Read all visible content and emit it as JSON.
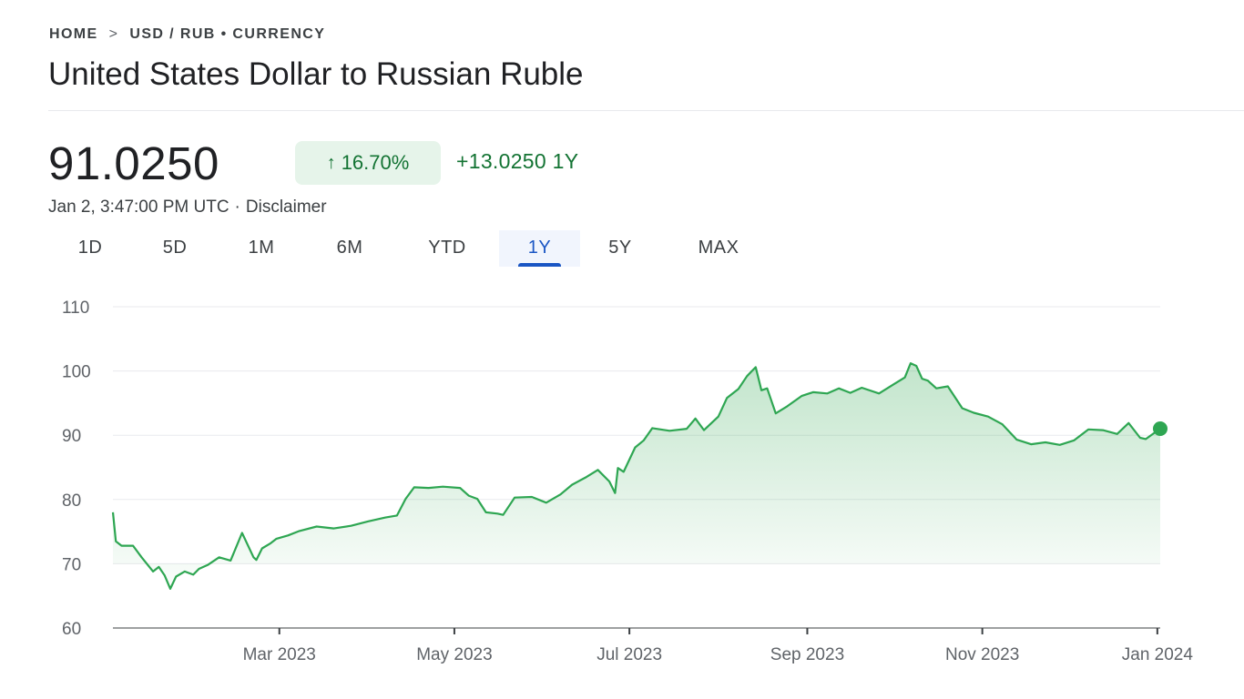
{
  "breadcrumb": {
    "home": "HOME",
    "separator": ">",
    "current": "USD / RUB • CURRENCY"
  },
  "title": "United States Dollar to Russian Ruble",
  "quote": {
    "price": "91.0250",
    "change_arrow": "↑",
    "change_percent": "16.70%",
    "change_abs": "+13.0250 1Y",
    "timestamp": "Jan 2, 3:47:00 PM UTC",
    "dot": "·",
    "disclaimer": "Disclaimer"
  },
  "tabs": [
    {
      "label": "1D"
    },
    {
      "label": "5D"
    },
    {
      "label": "1M"
    },
    {
      "label": "6M"
    },
    {
      "label": "YTD"
    },
    {
      "label": "1Y",
      "active": true
    },
    {
      "label": "5Y"
    },
    {
      "label": "MAX"
    }
  ],
  "colors": {
    "line": "#2ea652",
    "positive_text": "#137333",
    "chip_bg": "#e6f4ea",
    "active_tab": "#1a56c4"
  },
  "chart_data": {
    "type": "area",
    "y_ticks": [
      60,
      70,
      80,
      90,
      100,
      110
    ],
    "ylim": [
      60,
      110
    ],
    "x_ticks": [
      "Mar 2023",
      "May 2023",
      "Jul 2023",
      "Sep 2023",
      "Nov 2023",
      "Jan 2024"
    ],
    "x_tick_dates": [
      "2023-03-01",
      "2023-05-01",
      "2023-07-01",
      "2023-09-01",
      "2023-11-01",
      "2024-01-01"
    ],
    "xlim": [
      "2023-01-02",
      "2024-01-02"
    ],
    "grid": true,
    "series": [
      {
        "x": [
          "2023-01-02",
          "2023-01-03",
          "2023-01-05",
          "2023-01-09",
          "2023-01-12",
          "2023-01-16",
          "2023-01-18",
          "2023-01-20",
          "2023-01-22",
          "2023-01-24",
          "2023-01-27",
          "2023-01-30",
          "2023-02-01",
          "2023-02-04",
          "2023-02-08",
          "2023-02-12",
          "2023-02-16",
          "2023-02-20",
          "2023-02-21",
          "2023-02-23",
          "2023-02-26",
          "2023-02-28",
          "2023-03-04",
          "2023-03-08",
          "2023-03-14",
          "2023-03-20",
          "2023-03-26",
          "2023-04-01",
          "2023-04-07",
          "2023-04-11",
          "2023-04-14",
          "2023-04-17",
          "2023-04-22",
          "2023-04-27",
          "2023-05-03",
          "2023-05-06",
          "2023-05-09",
          "2023-05-12",
          "2023-05-16",
          "2023-05-18",
          "2023-05-22",
          "2023-05-28",
          "2023-06-02",
          "2023-06-07",
          "2023-06-11",
          "2023-06-16",
          "2023-06-20",
          "2023-06-24",
          "2023-06-26",
          "2023-06-27",
          "2023-06-29",
          "2023-07-03",
          "2023-07-06",
          "2023-07-09",
          "2023-07-15",
          "2023-07-21",
          "2023-07-24",
          "2023-07-27",
          "2023-08-01",
          "2023-08-04",
          "2023-08-08",
          "2023-08-11",
          "2023-08-14",
          "2023-08-16",
          "2023-08-18",
          "2023-08-21",
          "2023-08-25",
          "2023-08-30",
          "2023-09-03",
          "2023-09-08",
          "2023-09-12",
          "2023-09-16",
          "2023-09-20",
          "2023-09-26",
          "2023-10-01",
          "2023-10-05",
          "2023-10-07",
          "2023-10-09",
          "2023-10-11",
          "2023-10-13",
          "2023-10-16",
          "2023-10-20",
          "2023-10-25",
          "2023-10-29",
          "2023-11-03",
          "2023-11-08",
          "2023-11-13",
          "2023-11-18",
          "2023-11-23",
          "2023-11-28",
          "2023-12-03",
          "2023-12-08",
          "2023-12-13",
          "2023-12-18",
          "2023-12-22",
          "2023-12-26",
          "2023-12-28",
          "2024-01-02"
        ],
        "y": [
          78.0,
          73.5,
          72.8,
          72.8,
          71.0,
          68.8,
          69.5,
          68.2,
          66.1,
          68.0,
          68.8,
          68.3,
          69.2,
          69.8,
          71.0,
          70.5,
          74.8,
          71.0,
          70.6,
          72.4,
          73.2,
          73.9,
          74.4,
          75.1,
          75.8,
          75.5,
          75.9,
          76.6,
          77.2,
          77.5,
          80.1,
          81.9,
          81.8,
          82.0,
          81.8,
          80.6,
          80.1,
          78.0,
          77.8,
          77.6,
          80.3,
          80.4,
          79.5,
          80.8,
          82.3,
          83.5,
          84.6,
          82.8,
          81.0,
          84.9,
          84.3,
          88.1,
          89.2,
          91.1,
          90.7,
          91.0,
          92.6,
          90.8,
          92.9,
          95.8,
          97.2,
          99.2,
          100.6,
          97.0,
          97.3,
          93.4,
          94.5,
          96.1,
          96.7,
          96.5,
          97.3,
          96.6,
          97.4,
          96.5,
          97.9,
          99.0,
          101.2,
          100.8,
          98.8,
          98.5,
          97.3,
          97.6,
          94.2,
          93.5,
          92.9,
          91.7,
          89.3,
          88.6,
          88.9,
          88.5,
          89.2,
          90.9,
          90.8,
          90.2,
          91.9,
          89.6,
          89.4,
          91.025
        ]
      }
    ]
  }
}
